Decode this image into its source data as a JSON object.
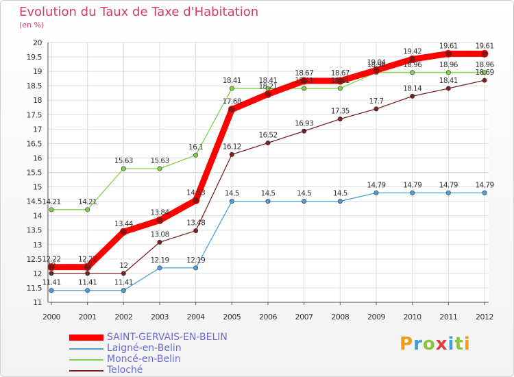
{
  "title": "Evolution du Taux de Taxe d'Habitation",
  "subtitle": "(en %)",
  "logo_text": "Proxiti",
  "chart_data": {
    "type": "line",
    "title": "Evolution du Taux de Taxe d'Habitation",
    "subtitle": "(en %)",
    "xlabel": "",
    "ylabel": "(en %)",
    "ylim": [
      11,
      20
    ],
    "grid": true,
    "legend_position": "bottom-left",
    "x": [
      "2000",
      "2001",
      "2002",
      "2003",
      "2004",
      "2005",
      "2006",
      "2007",
      "2008",
      "2009",
      "2010",
      "2011",
      "2012"
    ],
    "y_ticks": [
      "11",
      "11.5",
      "12",
      "12.5",
      "13",
      "13.5",
      "14",
      "14.5",
      "15",
      "15.5",
      "16",
      "16.5",
      "17",
      "17.5",
      "18",
      "18.5",
      "19",
      "19.5",
      "20"
    ],
    "series": [
      {
        "name": "SAINT-GERVAIS-EN-BELIN",
        "color": "#ff0000",
        "values": [
          12.22,
          12.22,
          13.44,
          13.84,
          14.53,
          17.68,
          18.21,
          18.67,
          18.67,
          19.04,
          19.42,
          19.61,
          19.61
        ],
        "labels": [
          "12.22",
          "12.22",
          "13.44",
          "13.84",
          "14.53",
          "17.68",
          "18.21",
          "18.67",
          "18.67",
          "19.04",
          "19.42",
          "19.61",
          "19.61"
        ]
      },
      {
        "name": "Laigné-en-Belin",
        "color": "#4f9fd6",
        "values": [
          11.41,
          11.41,
          11.41,
          12.19,
          12.19,
          14.5,
          14.5,
          14.5,
          14.5,
          14.79,
          14.79,
          14.79,
          14.79
        ],
        "labels": [
          "11.41",
          "11.41",
          "11.41",
          "12.19",
          "12.19",
          "14.5",
          "14.5",
          "14.5",
          "14.5",
          "14.79",
          "14.79",
          "14.79",
          "14.79"
        ]
      },
      {
        "name": "Moncé-en-Belin",
        "color": "#7fd04a",
        "values": [
          14.21,
          14.21,
          15.63,
          15.63,
          16.1,
          18.41,
          18.41,
          18.41,
          18.41,
          18.96,
          18.96,
          18.96,
          18.96
        ],
        "labels": [
          "14.21",
          "14.21",
          "15.63",
          "15.63",
          "16.1",
          "18.41",
          "18.41",
          "18.41",
          "18.41",
          "18.96",
          "18.96",
          "18.96",
          "18.96"
        ]
      },
      {
        "name": "Teloché",
        "color": "#7a2020",
        "values": [
          12,
          12,
          12,
          13.08,
          13.48,
          16.12,
          16.52,
          16.93,
          17.35,
          17.7,
          18.14,
          18.41,
          18.69
        ],
        "labels": [
          "12",
          "12",
          "12",
          "13.08",
          "13.48",
          "16.12",
          "16.52",
          "16.93",
          "17.35",
          "17.7",
          "18.14",
          "18.41",
          "18.69"
        ]
      }
    ]
  }
}
